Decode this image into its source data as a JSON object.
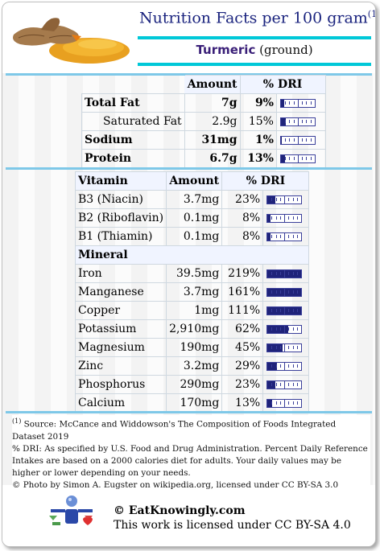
{
  "header": {
    "title": "Nutrition Facts per 100 gram",
    "title_footnote_mark": "(1)",
    "food_name": "Turmeric",
    "food_variant": "(ground)"
  },
  "macros": {
    "headers": [
      "",
      "Amount",
      "% DRI",
      ""
    ],
    "rows": [
      {
        "label": "Total Fat",
        "amount": "7g",
        "dri": "9%",
        "pct": 9,
        "bold": true
      },
      {
        "label": "Saturated Fat",
        "amount": "2.9g",
        "dri": "15%",
        "pct": 15,
        "bold": false
      },
      {
        "label": "Sodium",
        "amount": "31mg",
        "dri": "1%",
        "pct": 1,
        "bold": true
      },
      {
        "label": "Protein",
        "amount": "6.7g",
        "dri": "13%",
        "pct": 13,
        "bold": true
      }
    ]
  },
  "micros": {
    "vitamin_header": "Vitamin",
    "amount_header": "Amount",
    "dri_header": "% DRI",
    "vitamins": [
      {
        "label": "B3 (Niacin)",
        "amount": "3.7mg",
        "dri": "23%",
        "pct": 23
      },
      {
        "label": "B2 (Riboflavin)",
        "amount": "0.1mg",
        "dri": "8%",
        "pct": 8
      },
      {
        "label": "B1 (Thiamin)",
        "amount": "0.1mg",
        "dri": "8%",
        "pct": 8
      }
    ],
    "mineral_header": "Mineral",
    "minerals": [
      {
        "label": "Iron",
        "amount": "39.5mg",
        "dri": "219%",
        "pct": 219
      },
      {
        "label": "Manganese",
        "amount": "3.7mg",
        "dri": "161%",
        "pct": 161
      },
      {
        "label": "Copper",
        "amount": "1mg",
        "dri": "111%",
        "pct": 111
      },
      {
        "label": "Potassium",
        "amount": "2,910mg",
        "dri": "62%",
        "pct": 62
      },
      {
        "label": "Magnesium",
        "amount": "190mg",
        "dri": "45%",
        "pct": 45
      },
      {
        "label": "Zinc",
        "amount": "3.2mg",
        "dri": "29%",
        "pct": 29
      },
      {
        "label": "Phosphorus",
        "amount": "290mg",
        "dri": "23%",
        "pct": 23
      },
      {
        "label": "Calcium",
        "amount": "170mg",
        "dri": "13%",
        "pct": 13
      }
    ]
  },
  "notes": {
    "footnote_mark": "(1)",
    "source": " Source: McCance and Widdowson's The Composition of Foods Integrated Dataset 2019",
    "dri": "% DRI: As specified by U.S. Food and Drug Administration. Percent Daily Reference Intakes are based on a 2000 calories diet for adults. Your daily values may be higher or lower depending on your needs.",
    "photo_credit": "© Photo by Simon A. Eugster on wikipedia.org, licensed under CC BY-SA 3.0"
  },
  "footer": {
    "site": "© EatKnowingly.com",
    "license": "This work is licensed under CC BY-SA 4.0"
  },
  "colors": {
    "title": "#1a237e",
    "accent_bar": "#00c8d8",
    "gauge_fill": "#1f237a"
  }
}
